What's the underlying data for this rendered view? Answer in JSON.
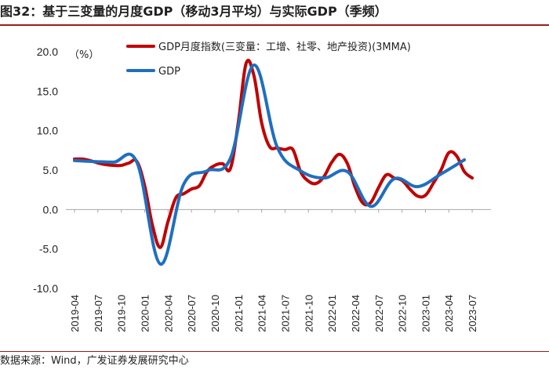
{
  "figure": {
    "title": "图32：基于三变量的月度GDP（移动3月平均）与实际GDP（季频）",
    "source": "数据来源：Wind，广发证券发展研究中心"
  },
  "chart_data": {
    "type": "line",
    "ylim": [
      -10,
      20
    ],
    "yticks": [
      "20.0",
      "15.0",
      "10.0",
      "5.0",
      "0.0",
      "-5.0",
      "-10.0"
    ],
    "ylabel": "（%）",
    "x_range": [
      "2019-04",
      "2023-08"
    ],
    "xticks": [
      "2019-04",
      "2019-07",
      "2019-10",
      "2020-01",
      "2020-04",
      "2020-07",
      "2020-10",
      "2021-01",
      "2021-04",
      "2021-07",
      "2021-10",
      "2022-01",
      "2022-04",
      "2022-07",
      "2022-10",
      "2023-01",
      "2023-04",
      "2023-07"
    ],
    "legend_position": "top",
    "series": [
      {
        "name": "GDP月度指数(三变量：工增、社零、地产投资)(3MMA)",
        "color": "#c00000",
        "points": [
          [
            "2019-04",
            6.4
          ],
          [
            "2019-05",
            6.4
          ],
          [
            "2019-06",
            6.2
          ],
          [
            "2019-07",
            5.9
          ],
          [
            "2019-08",
            5.7
          ],
          [
            "2019-09",
            5.6
          ],
          [
            "2019-10",
            5.6
          ],
          [
            "2019-11",
            5.9
          ],
          [
            "2019-12",
            6.1
          ],
          [
            "2020-01",
            3.0
          ],
          [
            "2020-02",
            -2.0
          ],
          [
            "2020-03",
            -4.8
          ],
          [
            "2020-04",
            -1.5
          ],
          [
            "2020-05",
            1.5
          ],
          [
            "2020-06",
            2.0
          ],
          [
            "2020-07",
            2.6
          ],
          [
            "2020-08",
            3.0
          ],
          [
            "2020-09",
            4.8
          ],
          [
            "2020-10",
            5.6
          ],
          [
            "2020-11",
            5.8
          ],
          [
            "2020-12",
            5.2
          ],
          [
            "2021-01",
            11.0
          ],
          [
            "2021-02",
            18.5
          ],
          [
            "2021-03",
            17.0
          ],
          [
            "2021-04",
            11.0
          ],
          [
            "2021-05",
            8.0
          ],
          [
            "2021-06",
            7.8
          ],
          [
            "2021-07",
            7.6
          ],
          [
            "2021-08",
            7.6
          ],
          [
            "2021-09",
            4.8
          ],
          [
            "2021-10",
            3.6
          ],
          [
            "2021-11",
            3.3
          ],
          [
            "2021-12",
            4.2
          ],
          [
            "2022-01",
            6.0
          ],
          [
            "2022-02",
            7.0
          ],
          [
            "2022-03",
            5.8
          ],
          [
            "2022-04",
            2.8
          ],
          [
            "2022-05",
            0.8
          ],
          [
            "2022-06",
            0.9
          ],
          [
            "2022-07",
            2.8
          ],
          [
            "2022-08",
            4.4
          ],
          [
            "2022-09",
            4.0
          ],
          [
            "2022-10",
            3.7
          ],
          [
            "2022-11",
            2.6
          ],
          [
            "2022-12",
            1.7
          ],
          [
            "2023-01",
            1.8
          ],
          [
            "2023-02",
            3.3
          ],
          [
            "2023-03",
            5.0
          ],
          [
            "2023-04",
            7.2
          ],
          [
            "2023-05",
            6.8
          ],
          [
            "2023-06",
            4.8
          ],
          [
            "2023-07",
            4.0
          ]
        ]
      },
      {
        "name": "GDP",
        "color": "#1f6fc0",
        "points": [
          [
            "2019-04",
            6.2
          ],
          [
            "2019-06",
            6.1
          ],
          [
            "2019-09",
            6.0
          ],
          [
            "2019-12",
            6.0
          ],
          [
            "2020-03",
            -6.9
          ],
          [
            "2020-06",
            3.2
          ],
          [
            "2020-09",
            4.9
          ],
          [
            "2020-12",
            6.5
          ],
          [
            "2021-03",
            18.3
          ],
          [
            "2021-06",
            7.9
          ],
          [
            "2021-09",
            4.9
          ],
          [
            "2021-12",
            4.0
          ],
          [
            "2022-03",
            4.8
          ],
          [
            "2022-06",
            0.4
          ],
          [
            "2022-09",
            3.9
          ],
          [
            "2022-12",
            2.9
          ],
          [
            "2023-03",
            4.5
          ],
          [
            "2023-06",
            6.3
          ]
        ]
      }
    ]
  }
}
